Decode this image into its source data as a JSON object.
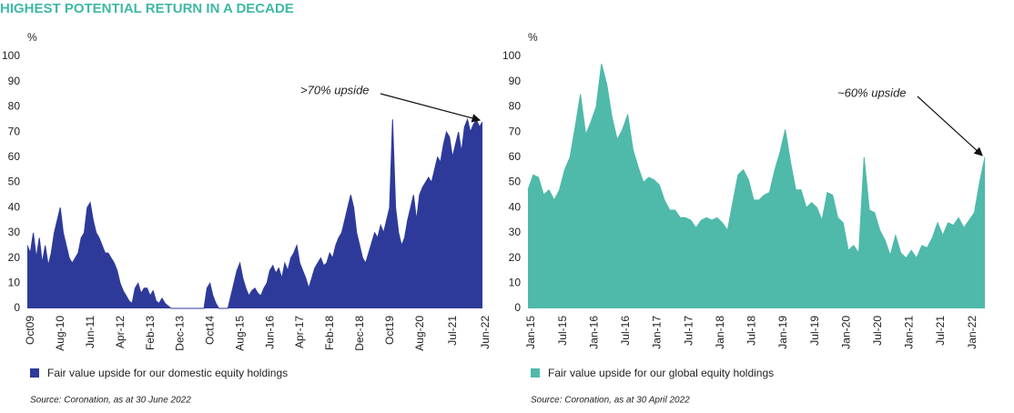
{
  "title": "HIGHEST POTENTIAL RETURN IN A DECADE",
  "chart_data": [
    {
      "type": "area",
      "ylabel": "%",
      "ylim": [
        0,
        100
      ],
      "yticks": [
        0,
        10,
        20,
        30,
        40,
        50,
        60,
        70,
        80,
        90,
        100
      ],
      "annotation": ">70% upside",
      "source": "Source: Coronation, as at 30 June 2022",
      "categories": [
        "Oct09",
        null,
        null,
        null,
        null,
        null,
        null,
        null,
        null,
        null,
        "Aug-10",
        null,
        null,
        null,
        null,
        null,
        null,
        null,
        null,
        null,
        "Jun-11",
        null,
        null,
        null,
        null,
        null,
        null,
        null,
        null,
        null,
        "Apr-12",
        null,
        null,
        null,
        null,
        null,
        null,
        null,
        null,
        null,
        "Feb-13",
        null,
        null,
        null,
        null,
        null,
        null,
        null,
        null,
        null,
        "Dec-13",
        null,
        null,
        null,
        null,
        null,
        null,
        null,
        null,
        null,
        "Oct14",
        null,
        null,
        null,
        null,
        null,
        null,
        null,
        null,
        null,
        "Aug-15",
        null,
        null,
        null,
        null,
        null,
        null,
        null,
        null,
        null,
        "Jun-16",
        null,
        null,
        null,
        null,
        null,
        null,
        null,
        null,
        null,
        "Apr-17",
        null,
        null,
        null,
        null,
        null,
        null,
        null,
        null,
        null,
        "Feb-18",
        null,
        null,
        null,
        null,
        null,
        null,
        null,
        null,
        null,
        "Dec-18",
        null,
        null,
        null,
        null,
        null,
        null,
        null,
        null,
        null,
        "Oct19",
        null,
        null,
        null,
        null,
        null,
        null,
        null,
        null,
        null,
        "Aug-20",
        null,
        null,
        null,
        null,
        null,
        null,
        null,
        null,
        null,
        null,
        "Jul-21",
        null,
        null,
        null,
        null,
        null,
        null,
        null,
        null,
        null,
        null,
        "Jun-22"
      ],
      "series": [
        {
          "name": "Fair value upside for our domestic equity holdings",
          "color": "#2e3a9a",
          "values": [
            25,
            22,
            30,
            20,
            28,
            18,
            25,
            17,
            22,
            30,
            35,
            40,
            30,
            25,
            20,
            18,
            20,
            22,
            28,
            30,
            40,
            42,
            35,
            30,
            28,
            25,
            22,
            22,
            20,
            18,
            15,
            10,
            7,
            5,
            3,
            2,
            8,
            10,
            6,
            8,
            8,
            5,
            7,
            3,
            2,
            4,
            2,
            1,
            0,
            0,
            0,
            0,
            0,
            0,
            0,
            0,
            0,
            0,
            0,
            0,
            8,
            10,
            5,
            2,
            0,
            0,
            0,
            0,
            5,
            10,
            15,
            18,
            12,
            8,
            5,
            7,
            8,
            6,
            5,
            8,
            10,
            15,
            17,
            14,
            16,
            12,
            18,
            15,
            20,
            22,
            25,
            18,
            15,
            12,
            8,
            12,
            16,
            18,
            20,
            17,
            18,
            22,
            20,
            25,
            28,
            30,
            35,
            40,
            45,
            40,
            30,
            25,
            20,
            18,
            22,
            26,
            30,
            28,
            33,
            30,
            35,
            40,
            75,
            40,
            30,
            25,
            28,
            35,
            40,
            45,
            35,
            45,
            48,
            50,
            52,
            50,
            55,
            60,
            58,
            65,
            70,
            68,
            60,
            65,
            70,
            62,
            72,
            75,
            70,
            73,
            75,
            72,
            74
          ]
        }
      ]
    },
    {
      "type": "area",
      "ylabel": "%",
      "ylim": [
        0,
        100
      ],
      "yticks": [
        0,
        10,
        20,
        30,
        40,
        50,
        60,
        70,
        80,
        90,
        100
      ],
      "annotation": "~60% upside",
      "source": "Source: Coronation, as at 30 April 2022",
      "categories": [
        "Jan-15",
        null,
        null,
        null,
        null,
        null,
        "Jul-15",
        null,
        null,
        null,
        null,
        null,
        "Jan-16",
        null,
        null,
        null,
        null,
        null,
        "Jul-16",
        null,
        null,
        null,
        null,
        null,
        "Jan-17",
        null,
        null,
        null,
        null,
        null,
        "Jul-17",
        null,
        null,
        null,
        null,
        null,
        "Jan-18",
        null,
        null,
        null,
        null,
        null,
        "Jul-18",
        null,
        null,
        null,
        null,
        null,
        "Jan-19",
        null,
        null,
        null,
        null,
        null,
        "Jul-19",
        null,
        null,
        null,
        null,
        null,
        "Jan-20",
        null,
        null,
        null,
        null,
        null,
        "Jul-20",
        null,
        null,
        null,
        null,
        null,
        "Jan-21",
        null,
        null,
        null,
        null,
        null,
        "Jul-21",
        null,
        null,
        null,
        null,
        null,
        "Jan-22",
        null,
        null,
        null
      ],
      "series": [
        {
          "name": "Fair value upside for our global equity holdings",
          "color": "#4fb9aa",
          "values": [
            47,
            53,
            52,
            45,
            47,
            43,
            47,
            55,
            60,
            72,
            85,
            69,
            74,
            80,
            97,
            89,
            76,
            67,
            71,
            77,
            63,
            56,
            50,
            52,
            51,
            49,
            43,
            39,
            39,
            36,
            36,
            35,
            32,
            35,
            36,
            35,
            36,
            34,
            31,
            42,
            53,
            55,
            51,
            43,
            43,
            45,
            46,
            55,
            62,
            71,
            58,
            47,
            47,
            40,
            42,
            40,
            35,
            46,
            45,
            36,
            34,
            23,
            25,
            22,
            60,
            39,
            38,
            31,
            27,
            21,
            29,
            22,
            20,
            23,
            20,
            25,
            24,
            28,
            34,
            29,
            34,
            33,
            36,
            32,
            35,
            38,
            50,
            60
          ]
        }
      ]
    }
  ]
}
